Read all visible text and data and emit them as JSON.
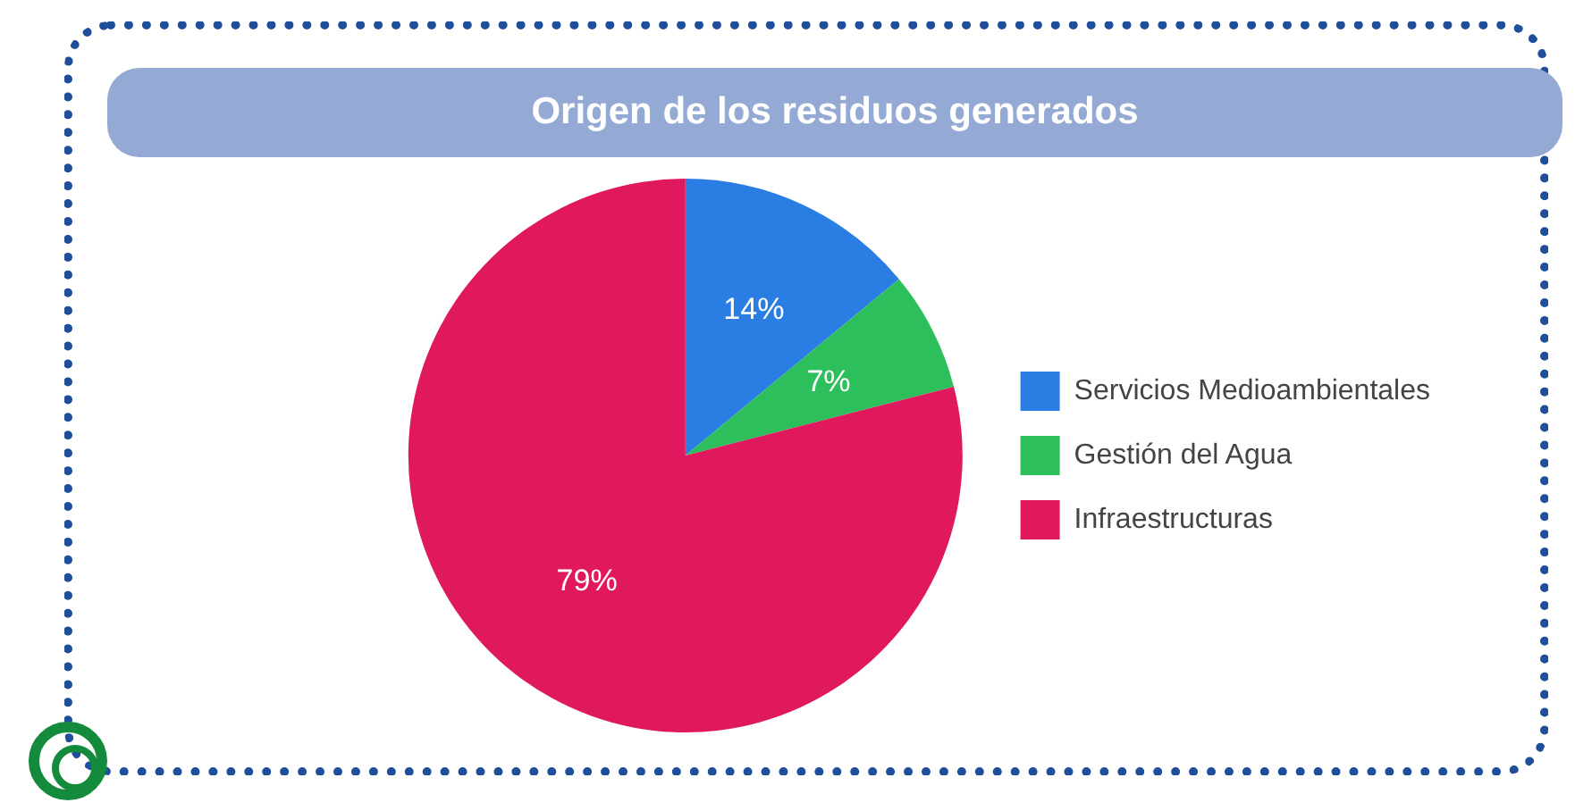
{
  "chart_data": {
    "type": "pie",
    "title": "Origen de los residuos generados",
    "categories": [
      "Servicios Medioambientales",
      "Gestión del Agua",
      "Infraestructuras"
    ],
    "values": [
      14,
      7,
      79
    ],
    "colors": [
      "#2a7ee3",
      "#2cbf5c",
      "#e0195f"
    ],
    "value_labels": [
      "14%",
      "7%",
      "79%"
    ],
    "legend": "right"
  }
}
